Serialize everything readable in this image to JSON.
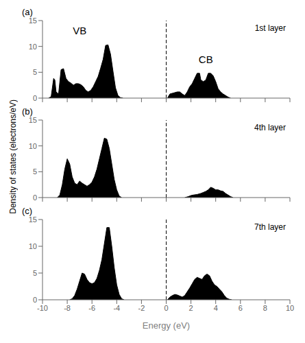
{
  "chart_data": [
    {
      "type": "area",
      "title": "(a)",
      "subtitle": "1st layer",
      "xlim": [
        -10,
        10
      ],
      "ylim": [
        0,
        15
      ],
      "xticks": [
        -10,
        -8,
        -6,
        -4,
        -2,
        0,
        2,
        4,
        6,
        8,
        10
      ],
      "yticks": [
        0,
        5,
        10,
        15
      ],
      "tick_labels": "y",
      "series": [
        {
          "x": [
            -9.5,
            -9.3,
            -9.1,
            -9.0,
            -8.9,
            -8.7,
            -8.5,
            -8.3,
            -8.1,
            -7.9,
            -7.7,
            -7.5,
            -7.3,
            -7.1,
            -6.9,
            -6.7,
            -6.5,
            -6.3,
            -6.1,
            -5.9,
            -5.7,
            -5.5,
            -5.3,
            -5.1,
            -4.9,
            -4.7,
            -4.5,
            -4.3,
            -4.1,
            -3.9,
            -3.7,
            -3.5
          ],
          "values": [
            0.0,
            0.3,
            3.8,
            3.5,
            1.2,
            0.8,
            5.5,
            5.7,
            3.8,
            3.2,
            2.9,
            2.5,
            2.8,
            2.8,
            2.6,
            2.2,
            1.5,
            1.2,
            1.5,
            2.2,
            3.2,
            4.2,
            5.8,
            7.5,
            10.2,
            10.3,
            8.5,
            5.2,
            2.0,
            0.5,
            0.1,
            0.0
          ],
          "color": "black"
        },
        {
          "x": [
            0.1,
            0.3,
            0.6,
            0.9,
            1.1,
            1.3,
            1.5,
            1.7,
            1.9,
            2.1,
            2.3,
            2.5,
            2.7,
            2.8,
            3.0,
            3.2,
            3.4,
            3.6,
            3.8,
            4.0,
            4.2,
            4.4,
            4.6,
            4.8,
            5.0,
            5.2
          ],
          "values": [
            0.0,
            0.8,
            1.0,
            1.2,
            1.2,
            0.8,
            0.5,
            1.2,
            2.2,
            2.8,
            3.8,
            4.8,
            4.8,
            3.5,
            3.2,
            3.5,
            4.8,
            4.8,
            4.3,
            3.2,
            1.8,
            1.2,
            0.8,
            0.5,
            0.2,
            0.0
          ],
          "color": "black"
        }
      ],
      "reference_lines": [
        {
          "x": 0,
          "color": "black",
          "line_style": "dashed"
        }
      ],
      "annotations": [
        {
          "text": "VB",
          "x": -7.0,
          "y": 13.0
        },
        {
          "text": "CB",
          "x": 3.2,
          "y": 7.5
        }
      ]
    },
    {
      "type": "area",
      "title": "(b)",
      "subtitle": "4th layer",
      "ylabel": "Density of states (electrons/eV)",
      "xlim": [
        -10,
        10
      ],
      "ylim": [
        0,
        15
      ],
      "xticks": [
        -10,
        -8,
        -6,
        -4,
        -2,
        0,
        2,
        4,
        6,
        8,
        10
      ],
      "yticks": [
        0,
        5,
        10,
        15
      ],
      "tick_labels": "y",
      "series": [
        {
          "x": [
            -8.8,
            -8.6,
            -8.4,
            -8.2,
            -8.0,
            -7.8,
            -7.6,
            -7.4,
            -7.2,
            -7.0,
            -6.8,
            -6.6,
            -6.4,
            -6.2,
            -6.0,
            -5.8,
            -5.6,
            -5.4,
            -5.2,
            -5.0,
            -4.8,
            -4.6,
            -4.4,
            -4.2,
            -4.0,
            -3.8,
            -3.6
          ],
          "values": [
            0.0,
            0.5,
            2.5,
            5.5,
            7.5,
            6.5,
            4.0,
            2.8,
            2.5,
            3.2,
            2.8,
            2.5,
            2.2,
            2.5,
            3.0,
            4.0,
            5.5,
            7.5,
            9.5,
            11.5,
            11.3,
            9.5,
            6.5,
            3.5,
            1.5,
            0.3,
            0.0
          ],
          "color": "black"
        },
        {
          "x": [
            1.5,
            1.8,
            2.0,
            2.2,
            2.5,
            2.8,
            3.0,
            3.2,
            3.4,
            3.6,
            3.8,
            4.0,
            4.2,
            4.4,
            4.6,
            4.8,
            5.0,
            5.2,
            5.4
          ],
          "values": [
            0.0,
            0.2,
            0.4,
            0.5,
            0.6,
            0.8,
            1.0,
            1.2,
            1.5,
            2.0,
            1.8,
            1.5,
            1.5,
            1.3,
            1.2,
            0.8,
            0.5,
            0.2,
            0.0
          ],
          "color": "black"
        }
      ],
      "reference_lines": [
        {
          "x": 0,
          "color": "black",
          "line_style": "dashed"
        }
      ]
    },
    {
      "type": "area",
      "title": "(c)",
      "subtitle": "7th layer",
      "xlabel": "Energy (eV)",
      "xlim": [
        -10,
        10
      ],
      "ylim": [
        0,
        15
      ],
      "xticks": [
        -10,
        -8,
        -6,
        -4,
        -2,
        0,
        2,
        4,
        6,
        8,
        10
      ],
      "yticks": [
        0,
        5,
        10,
        15
      ],
      "series": [
        {
          "x": [
            -7.8,
            -7.6,
            -7.4,
            -7.2,
            -7.0,
            -6.8,
            -6.6,
            -6.4,
            -6.2,
            -6.0,
            -5.8,
            -5.6,
            -5.4,
            -5.2,
            -5.0,
            -4.8,
            -4.6,
            -4.4,
            -4.2,
            -4.0,
            -3.8,
            -3.6,
            -3.4
          ],
          "values": [
            0.0,
            0.2,
            0.8,
            2.0,
            3.5,
            5.0,
            4.8,
            3.8,
            3.2,
            3.0,
            3.2,
            4.0,
            5.5,
            7.5,
            10.5,
            13.5,
            13.5,
            10.0,
            6.0,
            2.8,
            1.0,
            0.2,
            0.0
          ],
          "color": "black"
        },
        {
          "x": [
            0.1,
            0.3,
            0.5,
            0.7,
            0.9,
            1.1,
            1.3,
            1.5,
            1.7,
            1.9,
            2.1,
            2.3,
            2.5,
            2.7,
            2.9,
            3.1,
            3.3,
            3.5,
            3.7,
            3.9,
            4.1,
            4.3,
            4.5,
            4.7,
            4.9,
            5.1,
            5.3
          ],
          "values": [
            0.0,
            0.5,
            0.8,
            1.0,
            0.9,
            0.7,
            0.5,
            0.8,
            1.5,
            2.2,
            3.0,
            3.8,
            4.2,
            4.0,
            3.8,
            4.5,
            4.8,
            4.5,
            3.5,
            2.8,
            2.5,
            2.0,
            1.5,
            0.8,
            0.3,
            0.1,
            0.0
          ],
          "color": "black"
        }
      ],
      "reference_lines": [
        {
          "x": 0,
          "color": "black",
          "line_style": "dashed"
        }
      ]
    }
  ]
}
